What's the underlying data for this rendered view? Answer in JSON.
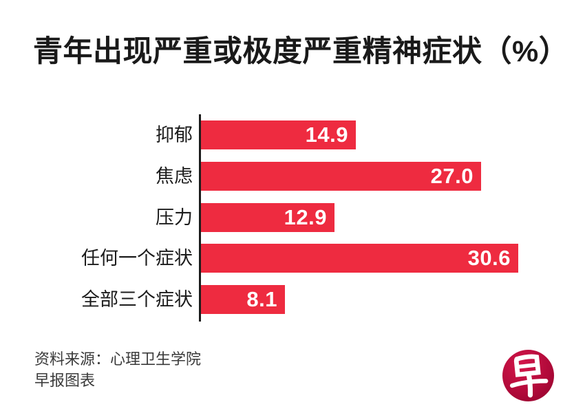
{
  "title": "青年出现严重或极度严重精神症状（%）",
  "chart_data": {
    "type": "bar",
    "orientation": "horizontal",
    "title": "青年出现严重或极度严重精神症状（%）",
    "categories": [
      "抑郁",
      "焦虑",
      "压力",
      "任何一个症状",
      "全部三个症状"
    ],
    "values": [
      14.9,
      27.0,
      12.9,
      30.6,
      8.1
    ],
    "value_labels": [
      "14.9",
      "27.0",
      "12.9",
      "30.6",
      "8.1"
    ],
    "xlabel": "",
    "ylabel": "",
    "xlim": [
      0,
      32
    ],
    "grid": false,
    "legend": null,
    "bar_color": "#ee2b40",
    "axis_color": "#1c1c1c",
    "value_label_color": "#ffffff"
  },
  "source": {
    "line1": "资料来源：心理卫生学院",
    "line2": "早报图表"
  },
  "logo": {
    "glyph": "早",
    "circle_color": "#b20a3a"
  },
  "layout_colors": {
    "background": "#ffffff",
    "text": "#1a1a1a"
  }
}
